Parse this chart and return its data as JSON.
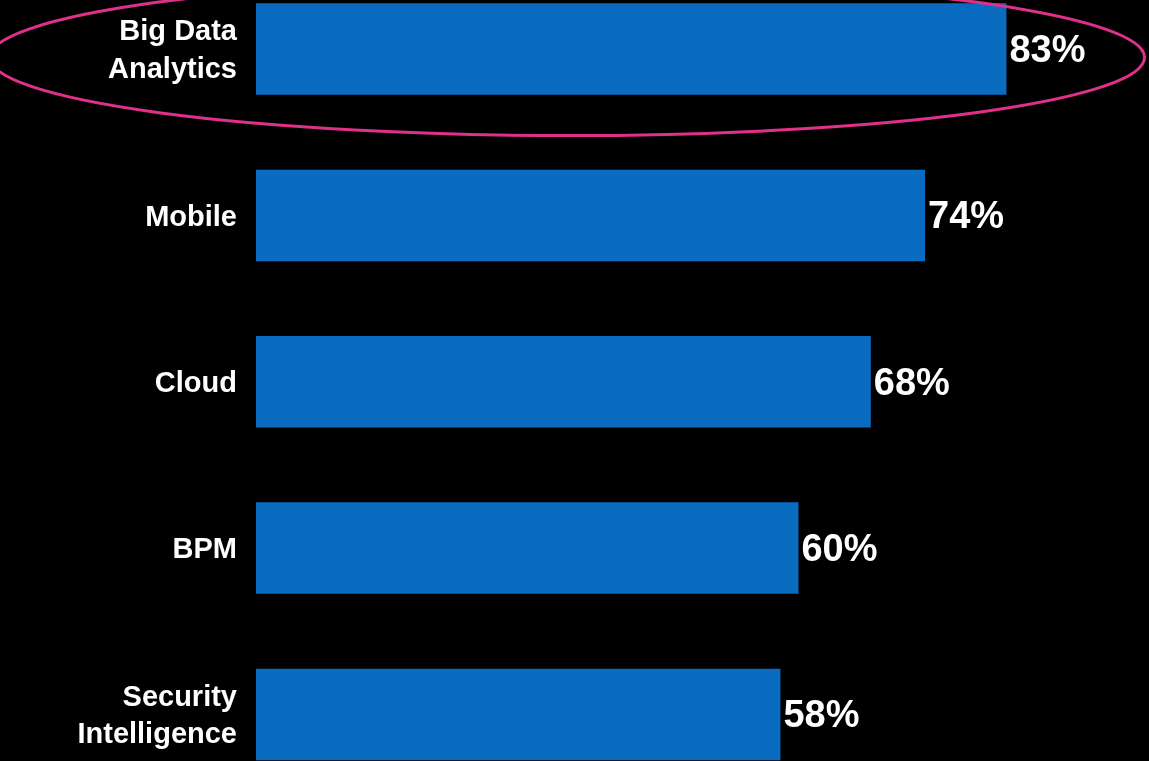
{
  "chart_data": {
    "type": "bar",
    "orientation": "horizontal",
    "categories": [
      "Big Data\nAnalytics",
      "Mobile",
      "Cloud",
      "BPM",
      "Security\nIntelligence"
    ],
    "values": [
      83,
      74,
      68,
      60,
      58
    ],
    "value_labels": [
      "83%",
      "74%",
      "68%",
      "60%",
      "58%"
    ],
    "color": "#0a6cc0",
    "grid": false,
    "legend": false
  }
}
